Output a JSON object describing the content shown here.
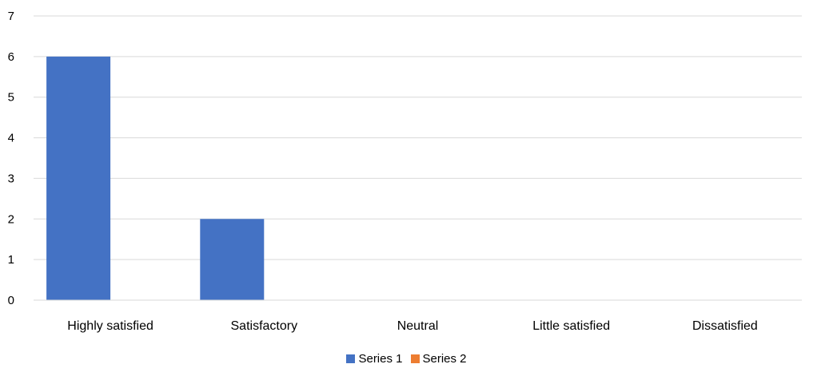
{
  "chart_data": {
    "type": "bar",
    "categories": [
      "Highly satisfied",
      "Satisfactory",
      "Neutral",
      "Little satisfied",
      "Dissatisfied"
    ],
    "series": [
      {
        "name": "Series 1",
        "values": [
          6,
          2,
          0,
          0,
          0
        ],
        "color": "#4472C4"
      },
      {
        "name": "Series 2",
        "values": [
          0,
          0,
          0,
          0,
          0
        ],
        "color": "#ED7D31"
      }
    ],
    "y_ticks": [
      "0",
      "1",
      "2",
      "3",
      "4",
      "5",
      "6",
      "7"
    ],
    "ylim": [
      0,
      7
    ],
    "title": "",
    "xlabel": "",
    "ylabel": "",
    "grid": true,
    "legend_position": "bottom",
    "grid_color": "#D9D9D9"
  }
}
